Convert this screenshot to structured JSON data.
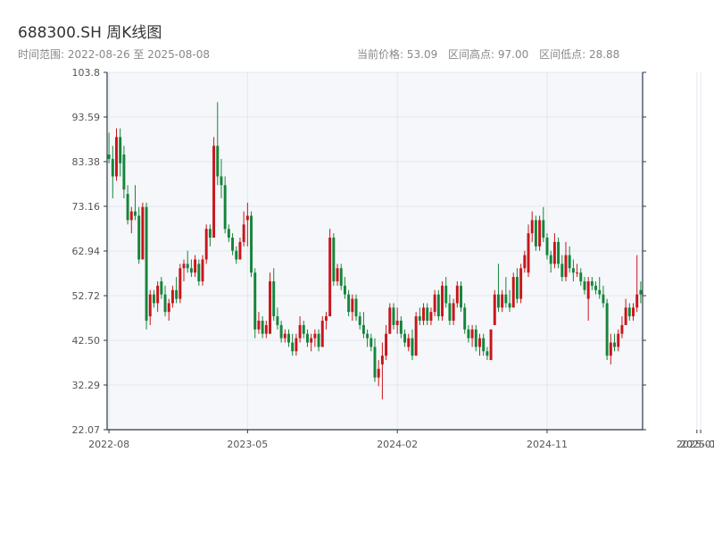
{
  "header": {
    "title": "688300.SH 周K线图",
    "subtitle": "时间范围: 2022-08-26 至 2025-08-08",
    "stats": [
      "当前价格: 53.09",
      "区间高点: 97.00",
      "区间低点: 28.88"
    ]
  },
  "colors": {
    "up": "#c8151b",
    "down": "#15853a",
    "plot_bg": "#f5f7fa",
    "grid": "#e3e7ee",
    "axis": "#2b3a4a"
  },
  "chart_data": {
    "type": "candlestick",
    "title": "688300.SH 周K线图",
    "ylim": [
      22.07,
      103.8
    ],
    "yticks": [
      "22.07",
      "32.29",
      "42.50",
      "52.72",
      "62.94",
      "73.16",
      "83.38",
      "93.59",
      "103.8"
    ],
    "xticks": [
      {
        "label": "2022-08",
        "index": 0
      },
      {
        "label": "2023-05",
        "index": 37
      },
      {
        "label": "2024-02",
        "index": 77
      },
      {
        "label": "2024-11",
        "index": 117
      },
      {
        "label": "2025-07",
        "index": 157
      },
      {
        "label": "2025-08",
        "index": 158
      }
    ],
    "grid": true,
    "series": [
      {
        "o": 85,
        "h": 90,
        "l": 83,
        "c": 84
      },
      {
        "o": 84,
        "h": 87,
        "l": 75,
        "c": 80
      },
      {
        "o": 80,
        "h": 91,
        "l": 79,
        "c": 89
      },
      {
        "o": 89,
        "h": 91,
        "l": 80,
        "c": 83
      },
      {
        "o": 85,
        "h": 87,
        "l": 75,
        "c": 77
      },
      {
        "o": 76,
        "h": 78,
        "l": 69,
        "c": 70
      },
      {
        "o": 70,
        "h": 73,
        "l": 67,
        "c": 72
      },
      {
        "o": 72,
        "h": 78,
        "l": 70,
        "c": 71
      },
      {
        "o": 71,
        "h": 73,
        "l": 60,
        "c": 61
      },
      {
        "o": 61,
        "h": 74,
        "l": 61,
        "c": 73
      },
      {
        "o": 73,
        "h": 74,
        "l": 45,
        "c": 47
      },
      {
        "o": 48,
        "h": 54,
        "l": 46,
        "c": 53
      },
      {
        "o": 53,
        "h": 54,
        "l": 50,
        "c": 51
      },
      {
        "o": 51,
        "h": 56,
        "l": 49,
        "c": 55
      },
      {
        "o": 56,
        "h": 57,
        "l": 52,
        "c": 53
      },
      {
        "o": 53,
        "h": 55,
        "l": 48,
        "c": 49
      },
      {
        "o": 49,
        "h": 52,
        "l": 47,
        "c": 51
      },
      {
        "o": 51,
        "h": 55,
        "l": 50,
        "c": 54
      },
      {
        "o": 54,
        "h": 57,
        "l": 51,
        "c": 52
      },
      {
        "o": 52,
        "h": 60,
        "l": 51,
        "c": 59
      },
      {
        "o": 59,
        "h": 61,
        "l": 56,
        "c": 60
      },
      {
        "o": 60,
        "h": 63,
        "l": 58,
        "c": 59
      },
      {
        "o": 59,
        "h": 61,
        "l": 57,
        "c": 58
      },
      {
        "o": 58,
        "h": 62,
        "l": 57,
        "c": 61
      },
      {
        "o": 60,
        "h": 61,
        "l": 55,
        "c": 56
      },
      {
        "o": 56,
        "h": 62,
        "l": 55,
        "c": 61
      },
      {
        "o": 61,
        "h": 69,
        "l": 60,
        "c": 68
      },
      {
        "o": 68,
        "h": 69,
        "l": 64,
        "c": 66
      },
      {
        "o": 66,
        "h": 89,
        "l": 66,
        "c": 87
      },
      {
        "o": 87,
        "h": 97,
        "l": 78,
        "c": 80
      },
      {
        "o": 80,
        "h": 84,
        "l": 75,
        "c": 78
      },
      {
        "o": 78,
        "h": 80,
        "l": 67,
        "c": 68
      },
      {
        "o": 68,
        "h": 69,
        "l": 65,
        "c": 66
      },
      {
        "o": 66,
        "h": 67,
        "l": 62,
        "c": 63
      },
      {
        "o": 63,
        "h": 64,
        "l": 60,
        "c": 61
      },
      {
        "o": 61,
        "h": 66,
        "l": 61,
        "c": 65
      },
      {
        "o": 65,
        "h": 72,
        "l": 64,
        "c": 69
      },
      {
        "o": 70,
        "h": 74,
        "l": 64,
        "c": 71
      },
      {
        "o": 71,
        "h": 72,
        "l": 57,
        "c": 58
      },
      {
        "o": 58,
        "h": 59,
        "l": 43,
        "c": 45
      },
      {
        "o": 45,
        "h": 49,
        "l": 44,
        "c": 47
      },
      {
        "o": 47,
        "h": 48,
        "l": 43,
        "c": 44
      },
      {
        "o": 44,
        "h": 47,
        "l": 43,
        "c": 46
      },
      {
        "o": 44,
        "h": 58,
        "l": 44,
        "c": 56
      },
      {
        "o": 56,
        "h": 59,
        "l": 47,
        "c": 48
      },
      {
        "o": 48,
        "h": 50,
        "l": 45,
        "c": 46
      },
      {
        "o": 46,
        "h": 47,
        "l": 42,
        "c": 43
      },
      {
        "o": 43,
        "h": 45,
        "l": 42,
        "c": 44
      },
      {
        "o": 44,
        "h": 45,
        "l": 41,
        "c": 42
      },
      {
        "o": 42,
        "h": 44,
        "l": 39,
        "c": 40
      },
      {
        "o": 40,
        "h": 44,
        "l": 39,
        "c": 43
      },
      {
        "o": 43,
        "h": 48,
        "l": 42,
        "c": 46
      },
      {
        "o": 46,
        "h": 47,
        "l": 43,
        "c": 44
      },
      {
        "o": 44,
        "h": 45,
        "l": 41,
        "c": 42
      },
      {
        "o": 42,
        "h": 44,
        "l": 40,
        "c": 43
      },
      {
        "o": 43,
        "h": 45,
        "l": 41,
        "c": 44
      },
      {
        "o": 44,
        "h": 45,
        "l": 40,
        "c": 41
      },
      {
        "o": 41,
        "h": 48,
        "l": 41,
        "c": 47
      },
      {
        "o": 47,
        "h": 49,
        "l": 45,
        "c": 48
      },
      {
        "o": 48,
        "h": 68,
        "l": 48,
        "c": 66
      },
      {
        "o": 66,
        "h": 67,
        "l": 55,
        "c": 56
      },
      {
        "o": 56,
        "h": 60,
        "l": 55,
        "c": 59
      },
      {
        "o": 59,
        "h": 60,
        "l": 54,
        "c": 55
      },
      {
        "o": 55,
        "h": 57,
        "l": 52,
        "c": 53
      },
      {
        "o": 53,
        "h": 54,
        "l": 48,
        "c": 49
      },
      {
        "o": 49,
        "h": 53,
        "l": 47,
        "c": 52
      },
      {
        "o": 52,
        "h": 53,
        "l": 47,
        "c": 48
      },
      {
        "o": 48,
        "h": 49,
        "l": 45,
        "c": 46
      },
      {
        "o": 46,
        "h": 49,
        "l": 43,
        "c": 44
      },
      {
        "o": 44,
        "h": 45,
        "l": 41,
        "c": 43
      },
      {
        "o": 43,
        "h": 44,
        "l": 40,
        "c": 41
      },
      {
        "o": 41,
        "h": 43,
        "l": 33,
        "c": 34
      },
      {
        "o": 34,
        "h": 38,
        "l": 32,
        "c": 36
      },
      {
        "o": 37,
        "h": 42,
        "l": 29,
        "c": 39
      },
      {
        "o": 39,
        "h": 46,
        "l": 38,
        "c": 44
      },
      {
        "o": 44,
        "h": 51,
        "l": 44,
        "c": 50
      },
      {
        "o": 50,
        "h": 51,
        "l": 45,
        "c": 46
      },
      {
        "o": 46,
        "h": 50,
        "l": 44,
        "c": 47
      },
      {
        "o": 47,
        "h": 48,
        "l": 43,
        "c": 44
      },
      {
        "o": 44,
        "h": 45,
        "l": 41,
        "c": 42
      },
      {
        "o": 41,
        "h": 44,
        "l": 40,
        "c": 43
      },
      {
        "o": 43,
        "h": 45,
        "l": 38,
        "c": 39
      },
      {
        "o": 39,
        "h": 49,
        "l": 39,
        "c": 48
      },
      {
        "o": 48,
        "h": 50,
        "l": 46,
        "c": 47
      },
      {
        "o": 47,
        "h": 51,
        "l": 46,
        "c": 50
      },
      {
        "o": 50,
        "h": 51,
        "l": 46,
        "c": 47
      },
      {
        "o": 47,
        "h": 50,
        "l": 46,
        "c": 49
      },
      {
        "o": 49,
        "h": 54,
        "l": 48,
        "c": 53
      },
      {
        "o": 53,
        "h": 54,
        "l": 47,
        "c": 48
      },
      {
        "o": 48,
        "h": 56,
        "l": 47,
        "c": 55
      },
      {
        "o": 55,
        "h": 57,
        "l": 50,
        "c": 51
      },
      {
        "o": 51,
        "h": 53,
        "l": 46,
        "c": 47
      },
      {
        "o": 47,
        "h": 52,
        "l": 46,
        "c": 51
      },
      {
        "o": 51,
        "h": 56,
        "l": 50,
        "c": 55
      },
      {
        "o": 55,
        "h": 56,
        "l": 49,
        "c": 50
      },
      {
        "o": 50,
        "h": 51,
        "l": 44,
        "c": 45
      },
      {
        "o": 45,
        "h": 46,
        "l": 42,
        "c": 43
      },
      {
        "o": 43,
        "h": 46,
        "l": 41,
        "c": 45
      },
      {
        "o": 45,
        "h": 46,
        "l": 40,
        "c": 41
      },
      {
        "o": 41,
        "h": 44,
        "l": 39,
        "c": 43
      },
      {
        "o": 43,
        "h": 44,
        "l": 39,
        "c": 40
      },
      {
        "o": 40,
        "h": 41,
        "l": 38,
        "c": 39
      },
      {
        "o": 38,
        "h": 45,
        "l": 38,
        "c": 45
      },
      {
        "o": 46,
        "h": 54,
        "l": 46,
        "c": 53
      },
      {
        "o": 53,
        "h": 60,
        "l": 49,
        "c": 50
      },
      {
        "o": 50,
        "h": 54,
        "l": 49,
        "c": 53
      },
      {
        "o": 53,
        "h": 57,
        "l": 50,
        "c": 51
      },
      {
        "o": 51,
        "h": 54,
        "l": 49,
        "c": 50
      },
      {
        "o": 50,
        "h": 58,
        "l": 50,
        "c": 57
      },
      {
        "o": 57,
        "h": 59,
        "l": 51,
        "c": 52
      },
      {
        "o": 52,
        "h": 60,
        "l": 51,
        "c": 59
      },
      {
        "o": 59,
        "h": 63,
        "l": 58,
        "c": 62
      },
      {
        "o": 58,
        "h": 69,
        "l": 57,
        "c": 67
      },
      {
        "o": 67,
        "h": 72,
        "l": 65,
        "c": 70
      },
      {
        "o": 70,
        "h": 71,
        "l": 63,
        "c": 64
      },
      {
        "o": 64,
        "h": 71,
        "l": 63,
        "c": 70
      },
      {
        "o": 70,
        "h": 73,
        "l": 65,
        "c": 66
      },
      {
        "o": 66,
        "h": 67,
        "l": 61,
        "c": 62
      },
      {
        "o": 62,
        "h": 63,
        "l": 58,
        "c": 60
      },
      {
        "o": 60,
        "h": 67,
        "l": 59,
        "c": 65
      },
      {
        "o": 65,
        "h": 66,
        "l": 59,
        "c": 60
      },
      {
        "o": 60,
        "h": 62,
        "l": 56,
        "c": 57
      },
      {
        "o": 57,
        "h": 65,
        "l": 56,
        "c": 62
      },
      {
        "o": 62,
        "h": 64,
        "l": 58,
        "c": 59
      },
      {
        "o": 59,
        "h": 61,
        "l": 56,
        "c": 58
      },
      {
        "o": 58,
        "h": 60,
        "l": 57,
        "c": 58
      },
      {
        "o": 58,
        "h": 59,
        "l": 55,
        "c": 56
      },
      {
        "o": 56,
        "h": 57,
        "l": 53,
        "c": 54
      },
      {
        "o": 52,
        "h": 57,
        "l": 47,
        "c": 56
      },
      {
        "o": 56,
        "h": 57,
        "l": 54,
        "c": 55
      },
      {
        "o": 55,
        "h": 56,
        "l": 53,
        "c": 54
      },
      {
        "o": 54,
        "h": 57,
        "l": 52,
        "c": 53
      },
      {
        "o": 53,
        "h": 55,
        "l": 50,
        "c": 51
      },
      {
        "o": 51,
        "h": 52,
        "l": 38,
        "c": 39
      },
      {
        "o": 39,
        "h": 44,
        "l": 37,
        "c": 42
      },
      {
        "o": 42,
        "h": 44,
        "l": 40,
        "c": 41
      },
      {
        "o": 41,
        "h": 45,
        "l": 40,
        "c": 44
      },
      {
        "o": 44,
        "h": 48,
        "l": 43,
        "c": 46
      },
      {
        "o": 46,
        "h": 52,
        "l": 46,
        "c": 50
      },
      {
        "o": 50,
        "h": 51,
        "l": 47,
        "c": 48
      },
      {
        "o": 48,
        "h": 51,
        "l": 47,
        "c": 50
      },
      {
        "o": 50,
        "h": 62,
        "l": 49,
        "c": 53
      },
      {
        "o": 54,
        "h": 56,
        "l": 51,
        "c": 53
      }
    ]
  }
}
